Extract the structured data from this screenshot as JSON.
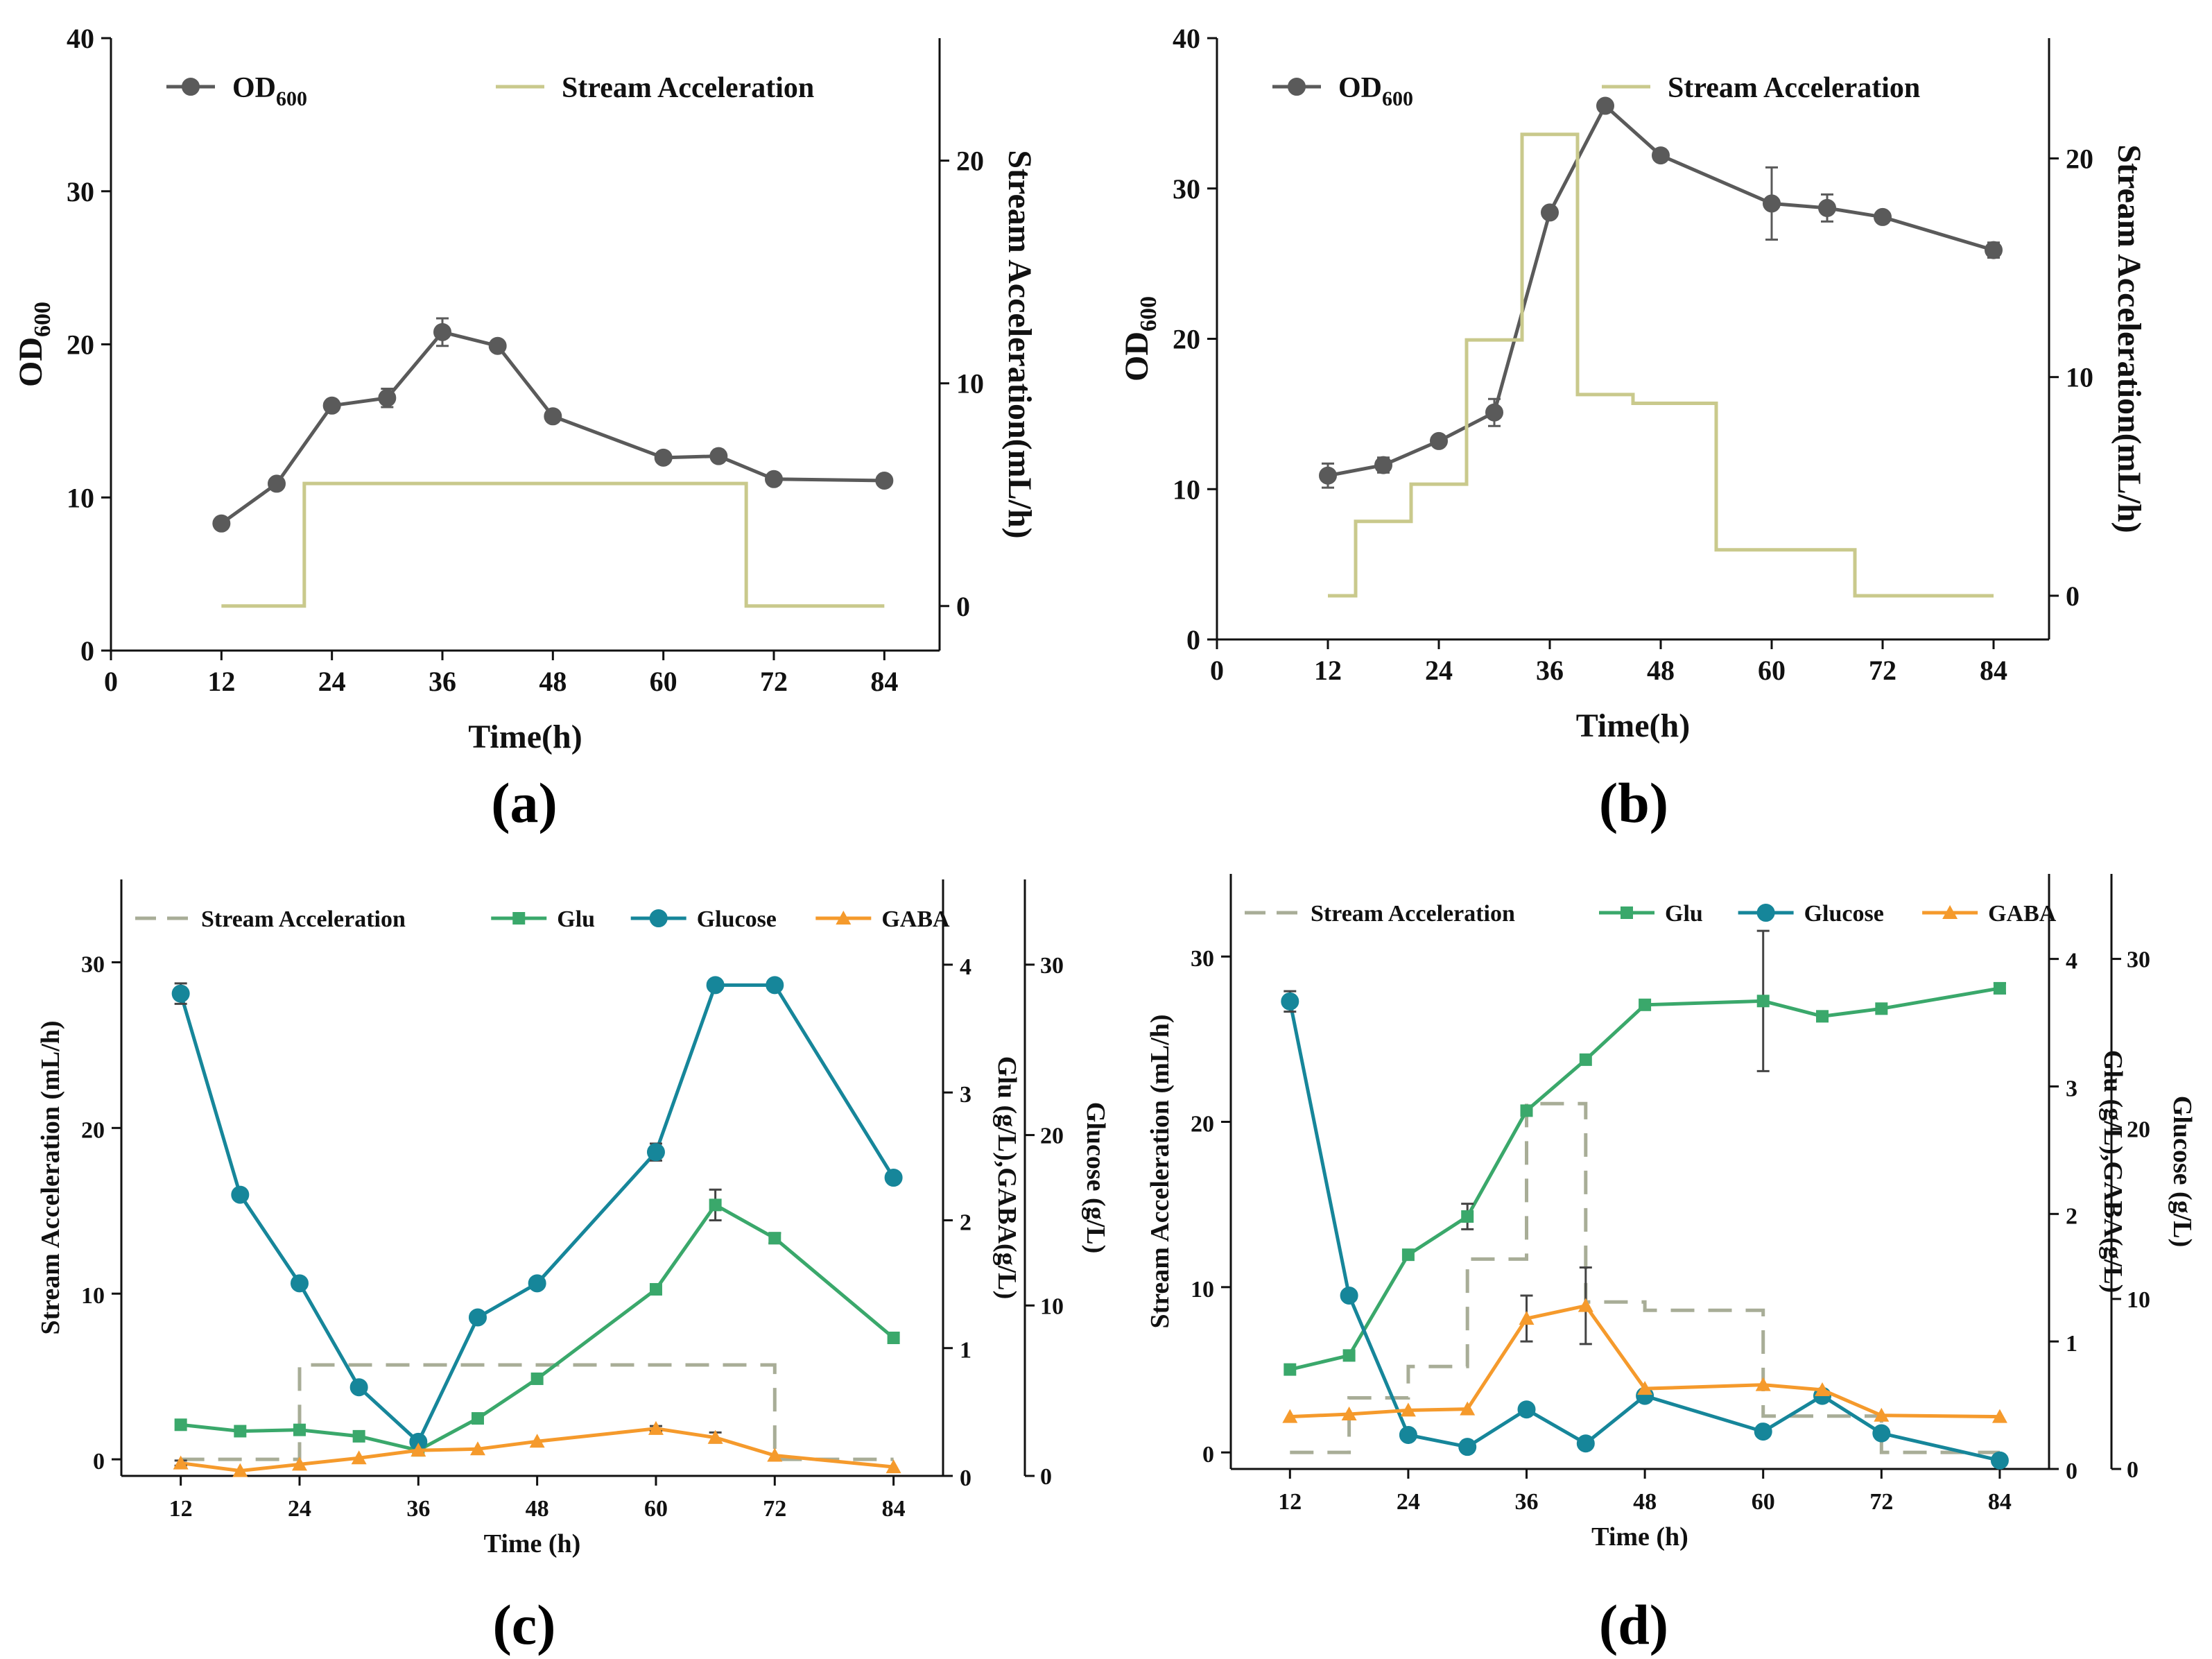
{
  "chart_data": [
    {
      "id": "a",
      "type": "line",
      "panel_label": "(a)",
      "xlabel": "Time(h)",
      "ylabel": "OD600",
      "ylabel_main": "OD",
      "ylabel_sub": "600",
      "y2label": "Stream Acceleration(mL/h)",
      "xlim": [
        0,
        90
      ],
      "ylim": [
        0,
        40
      ],
      "y2lim": [
        -2,
        25.5
      ],
      "xticks": [
        0,
        12,
        24,
        36,
        48,
        60,
        72,
        84
      ],
      "yticks": [
        0,
        10,
        20,
        30,
        40
      ],
      "y2ticks": [
        0,
        10,
        20
      ],
      "legend": [
        {
          "label_main": "OD",
          "label_sub": "600",
          "marker": "circle",
          "color": "#5a5a5a"
        },
        {
          "label_main": "Stream Acceleration",
          "label_sub": "",
          "marker": "line",
          "color": "#c9c98c"
        }
      ],
      "series": [
        {
          "name": "OD600",
          "axis": "left",
          "color": "#5a5a5a",
          "marker": "circle",
          "step": false,
          "x": [
            12,
            18,
            24,
            30,
            36,
            42,
            48,
            60,
            66,
            72,
            84
          ],
          "y": [
            8.3,
            10.9,
            16.0,
            16.5,
            20.8,
            19.9,
            15.3,
            12.6,
            12.7,
            11.2,
            11.1
          ],
          "err": [
            0,
            0,
            0,
            0.6,
            0.9,
            0,
            0,
            0,
            0,
            0,
            0
          ]
        },
        {
          "name": "Stream Acceleration",
          "axis": "right",
          "color": "#c9c98c",
          "marker": "none",
          "step": true,
          "x": [
            12,
            21,
            21,
            69,
            69,
            84
          ],
          "y": [
            0,
            0,
            5.5,
            5.5,
            0,
            0
          ]
        }
      ]
    },
    {
      "id": "b",
      "type": "line",
      "panel_label": "(b)",
      "xlabel": "Time(h)",
      "ylabel": "OD600",
      "ylabel_main": "OD",
      "ylabel_sub": "600",
      "y2label": "Stream Acceleration(mL/h)",
      "xlim": [
        0,
        90
      ],
      "ylim": [
        0,
        40
      ],
      "y2lim": [
        -2,
        25.5
      ],
      "xticks": [
        0,
        12,
        24,
        36,
        48,
        60,
        72,
        84
      ],
      "yticks": [
        0,
        10,
        20,
        30,
        40
      ],
      "y2ticks": [
        0,
        10,
        20
      ],
      "legend": [
        {
          "label_main": "OD",
          "label_sub": "600",
          "marker": "circle",
          "color": "#5a5a5a"
        },
        {
          "label_main": "Stream Acceleration",
          "label_sub": "",
          "marker": "line",
          "color": "#c9c98c"
        }
      ],
      "series": [
        {
          "name": "OD600",
          "axis": "left",
          "color": "#5a5a5a",
          "marker": "circle",
          "step": false,
          "x": [
            12,
            18,
            24,
            30,
            36,
            42,
            48,
            60,
            66,
            72,
            84
          ],
          "y": [
            10.9,
            11.6,
            13.2,
            15.1,
            28.4,
            35.5,
            32.2,
            29.0,
            28.7,
            28.1,
            25.9
          ],
          "err": [
            0.8,
            0.5,
            0,
            0.9,
            0,
            0,
            0,
            2.4,
            0.9,
            0,
            0.5
          ]
        },
        {
          "name": "Stream Acceleration",
          "axis": "right",
          "color": "#c9c98c",
          "marker": "none",
          "step": true,
          "x": [
            12,
            15,
            15,
            21,
            21,
            27,
            27,
            33,
            33,
            39,
            39,
            45,
            45,
            54,
            54,
            69,
            69,
            84
          ],
          "y": [
            0,
            0,
            3.4,
            3.4,
            5.1,
            5.1,
            11.7,
            11.7,
            21.1,
            21.1,
            9.2,
            9.2,
            8.8,
            8.8,
            2.1,
            2.1,
            0,
            0
          ]
        }
      ]
    },
    {
      "id": "c",
      "type": "line",
      "panel_label": "(c)",
      "xlabel": "Time (h)",
      "ylabel": "Stream Acceleration (mL/h)",
      "y2label": "Glu (g/L),GABA(g/L)",
      "y3label": "Glucose (g/L)",
      "xlim": [
        6,
        89
      ],
      "ylim": [
        -1,
        35
      ],
      "y2lim": [
        0,
        4.667
      ],
      "y3lim": [
        0,
        35
      ],
      "xticks": [
        12,
        24,
        36,
        48,
        60,
        72,
        84
      ],
      "yticks": [
        0,
        10,
        20,
        30
      ],
      "y2ticks": [
        0,
        1,
        2,
        3,
        4
      ],
      "y3ticks": [
        0,
        10,
        20,
        30
      ],
      "legend": [
        {
          "label": "Stream Acceleration",
          "marker": "dash",
          "color": "#a8ad97"
        },
        {
          "label": "Glu",
          "marker": "square",
          "color": "#3aa86b"
        },
        {
          "label": "Glucose",
          "marker": "circle",
          "color": "#16869a"
        },
        {
          "label": "GABA",
          "marker": "triangle",
          "color": "#f59a2c"
        }
      ],
      "series": [
        {
          "name": "Stream Acceleration",
          "axis": "left",
          "color": "#a8ad97",
          "marker": "none",
          "step": true,
          "dashed": true,
          "x": [
            12,
            24,
            24,
            72,
            72,
            84
          ],
          "y": [
            0,
            0,
            5.7,
            5.7,
            0,
            0
          ]
        },
        {
          "name": "Glu",
          "axis": "right",
          "color": "#3aa86b",
          "marker": "square",
          "x": [
            12,
            18,
            24,
            30,
            36,
            42,
            48,
            60,
            66,
            72,
            84
          ],
          "y": [
            0.4,
            0.35,
            0.36,
            0.31,
            0.2,
            0.45,
            0.76,
            1.46,
            2.12,
            1.86,
            1.08
          ],
          "err": [
            0,
            0,
            0,
            0,
            0,
            0,
            0,
            0,
            0.12,
            0.04,
            0
          ]
        },
        {
          "name": "Glucose",
          "axis": "right3",
          "color": "#16869a",
          "marker": "circle",
          "x": [
            12,
            18,
            24,
            30,
            36,
            42,
            48,
            60,
            66,
            72,
            84
          ],
          "y": [
            28.3,
            16.5,
            11.3,
            5.2,
            2.0,
            9.3,
            11.3,
            19.0,
            28.8,
            28.8,
            17.5
          ],
          "err": [
            0.6,
            0,
            0,
            0,
            0,
            0,
            0,
            0.5,
            0,
            0,
            0
          ]
        },
        {
          "name": "GABA",
          "axis": "right",
          "color": "#f59a2c",
          "marker": "triangle",
          "x": [
            12,
            18,
            24,
            30,
            36,
            42,
            48,
            60,
            66,
            72,
            84
          ],
          "y": [
            0.1,
            0.04,
            0.09,
            0.14,
            0.2,
            0.21,
            0.27,
            0.37,
            0.3,
            0.16,
            0.07
          ],
          "err": [
            0.02,
            0,
            0,
            0,
            0,
            0,
            0,
            0.02,
            0.04,
            0,
            0
          ]
        }
      ]
    },
    {
      "id": "d",
      "type": "line",
      "panel_label": "(d)",
      "xlabel": "Time (h)",
      "ylabel": "Stream Acceleration (mL/h)",
      "y2label": "Glu (g/L),GABA(g/L)",
      "y3label": "Glucose (g/L)",
      "xlim": [
        6,
        89
      ],
      "ylim": [
        -1,
        35
      ],
      "y2lim": [
        0,
        4.667
      ],
      "y3lim": [
        0,
        35
      ],
      "xticks": [
        12,
        24,
        36,
        48,
        60,
        72,
        84
      ],
      "yticks": [
        0,
        10,
        20,
        30
      ],
      "y2ticks": [
        0,
        1,
        2,
        3,
        4
      ],
      "y3ticks": [
        0,
        10,
        20,
        30
      ],
      "legend": [
        {
          "label": "Stream Acceleration",
          "marker": "dash",
          "color": "#a8ad97"
        },
        {
          "label": "Glu",
          "marker": "square",
          "color": "#3aa86b"
        },
        {
          "label": "Glucose",
          "marker": "circle",
          "color": "#16869a"
        },
        {
          "label": "GABA",
          "marker": "triangle",
          "color": "#f59a2c"
        }
      ],
      "series": [
        {
          "name": "Stream Acceleration",
          "axis": "left",
          "color": "#a8ad97",
          "marker": "none",
          "step": true,
          "dashed": true,
          "x": [
            12,
            18,
            18,
            24,
            24,
            30,
            30,
            36,
            36,
            42,
            42,
            48,
            48,
            60,
            60,
            72,
            72,
            84
          ],
          "y": [
            0,
            0,
            3.3,
            3.3,
            5.2,
            5.2,
            11.7,
            11.7,
            21.1,
            21.1,
            9.1,
            9.1,
            8.6,
            8.6,
            2.2,
            2.2,
            0,
            0
          ]
        },
        {
          "name": "Glu",
          "axis": "right",
          "color": "#3aa86b",
          "marker": "square",
          "x": [
            12,
            18,
            24,
            30,
            36,
            42,
            48,
            60,
            66,
            72,
            84
          ],
          "y": [
            0.78,
            0.89,
            1.68,
            1.98,
            2.81,
            3.21,
            3.64,
            3.67,
            3.55,
            3.61,
            3.77
          ],
          "err": [
            0,
            0,
            0,
            0.1,
            0,
            0,
            0,
            0.55,
            0,
            0,
            0.04
          ]
        },
        {
          "name": "Glucose",
          "axis": "right3",
          "color": "#16869a",
          "marker": "circle",
          "x": [
            12,
            18,
            24,
            30,
            36,
            42,
            48,
            60,
            66,
            72,
            84
          ],
          "y": [
            27.5,
            10.2,
            2.0,
            1.3,
            3.5,
            1.5,
            4.3,
            2.2,
            4.3,
            2.1,
            0.5
          ],
          "err": [
            0.6,
            0,
            0,
            0,
            0,
            0,
            0,
            0,
            0,
            0,
            0
          ]
        },
        {
          "name": "GABA",
          "axis": "right",
          "color": "#f59a2c",
          "marker": "triangle",
          "x": [
            12,
            18,
            24,
            30,
            36,
            42,
            48,
            60,
            66,
            72,
            84
          ],
          "y": [
            0.41,
            0.43,
            0.46,
            0.47,
            1.18,
            1.28,
            0.63,
            0.66,
            0.62,
            0.42,
            0.41
          ],
          "err": [
            0,
            0,
            0,
            0,
            0.18,
            0.3,
            0,
            0,
            0,
            0,
            0
          ]
        }
      ]
    }
  ]
}
